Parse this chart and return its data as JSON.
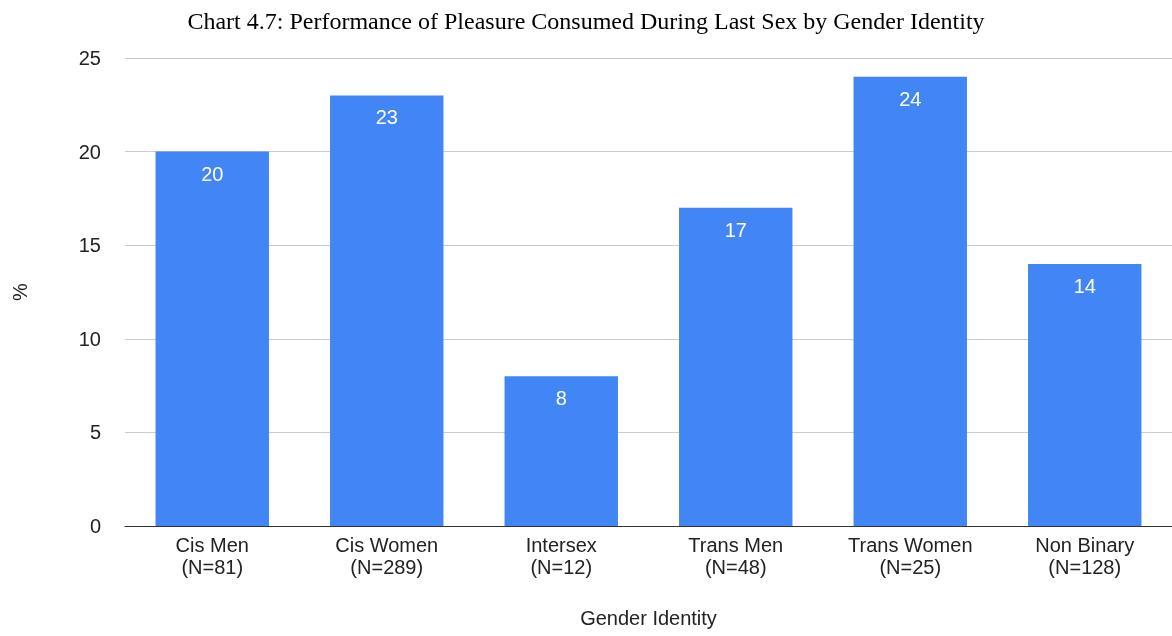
{
  "chart_data": {
    "type": "bar",
    "title": "Chart 4.7: Performance of Pleasure Consumed During Last Sex by Gender Identity",
    "categories": [
      "Cis Men\n(N=81)",
      "Cis Women\n(N=289)",
      "Intersex\n(N=12)",
      "Trans Men\n(N=48)",
      "Trans Women\n(N=25)",
      "Non Binary\n(N=128)"
    ],
    "values": [
      20,
      23,
      8,
      17,
      24,
      14
    ],
    "color": "#4285f4",
    "xlabel": "Gender Identity",
    "ylabel": "%",
    "ylim": [
      0,
      25
    ],
    "yticks": [
      0,
      5,
      10,
      15,
      20,
      25
    ],
    "grid": "y",
    "data_labels": true
  }
}
